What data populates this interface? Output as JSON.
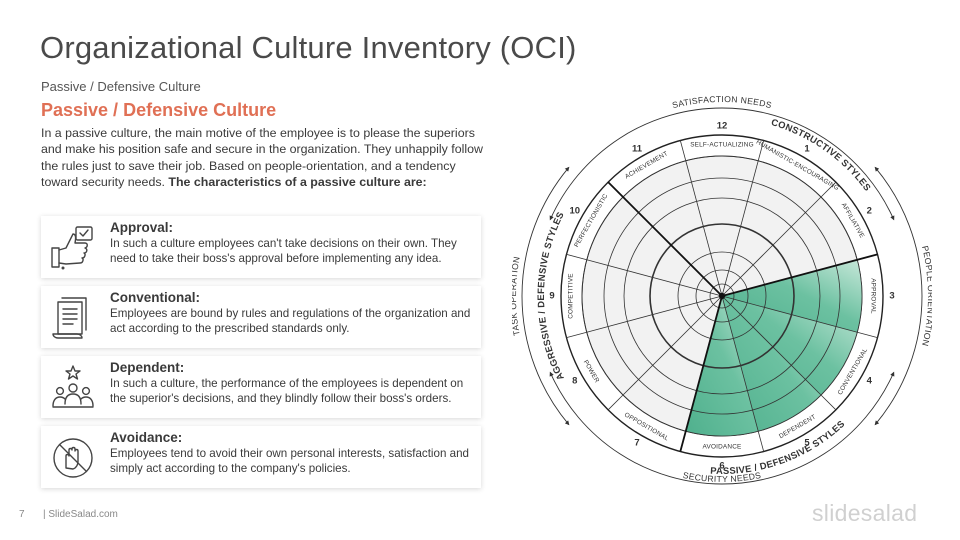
{
  "header": {
    "title": "Organizational Culture Inventory (OCI)",
    "subtitle": "Passive / Defensive Culture"
  },
  "section": {
    "title": "Passive / Defensive Culture",
    "intro": "In a passive culture, the main motive of the employee is to please the superiors and make his position safe and secure in the organization. They unhappily follow the rules just to save their job. Based on people-orientation, and a tendency toward security needs.",
    "intro_bold": "The characteristics of a passive culture are:"
  },
  "cards": [
    {
      "title": "Approval:",
      "text": "In such a culture employees can't take decisions on their own. They need to take their boss's approval before implementing any idea.",
      "icon": "approval-thumbs-up-icon"
    },
    {
      "title": "Conventional:",
      "text": "Employees are bound by rules and regulations of the organization and act according to the prescribed standards only.",
      "icon": "document-rules-icon"
    },
    {
      "title": "Dependent:",
      "text": "In such a culture, the performance of the employees is dependent on the superior's decisions, and they blindly follow their boss's orders.",
      "icon": "team-group-icon"
    },
    {
      "title": "Avoidance:",
      "text": "Employees tend to avoid their own personal interests, satisfaction and simply act according to the company's policies.",
      "icon": "avoidance-prohibited-icon"
    }
  ],
  "wheel": {
    "segments": [
      {
        "num": "12",
        "label": "SELF-ACTUALIZING"
      },
      {
        "num": "1",
        "label": "HUMANISTIC-ENCOURAGING"
      },
      {
        "num": "2",
        "label": "AFFILIATIVE"
      },
      {
        "num": "3",
        "label": "APPROVAL"
      },
      {
        "num": "4",
        "label": "CONVENTIONAL"
      },
      {
        "num": "5",
        "label": "DEPENDENT"
      },
      {
        "num": "6",
        "label": "AVOIDANCE"
      },
      {
        "num": "7",
        "label": "OPPOSITIONAL"
      },
      {
        "num": "8",
        "label": "POWER"
      },
      {
        "num": "9",
        "label": "COMPETITIVE"
      },
      {
        "num": "10",
        "label": "PERFECTIONISTIC"
      },
      {
        "num": "11",
        "label": "ACHIEVEMENT"
      }
    ],
    "highlight_segments": [
      3,
      4,
      5,
      6
    ],
    "highlight_color": "#5cb796",
    "accent_color": "#e07055",
    "outer_labels": {
      "top": "SATISFACTION NEEDS",
      "bottom": "SECURITY NEEDS",
      "right": "PEOPLE ORIENTATION",
      "left": "TASK OPERATION"
    },
    "style_labels": {
      "constructive": "CONSTRUCTIVE STYLES",
      "passive": "PASSIVE / DEFENSIVE STYLES",
      "aggressive": "AGGRESSIVE / DEFENSIVE STYLES"
    }
  },
  "footer": {
    "page": "7",
    "site": "| SlideSalad.com",
    "brand": "slidesalad"
  }
}
